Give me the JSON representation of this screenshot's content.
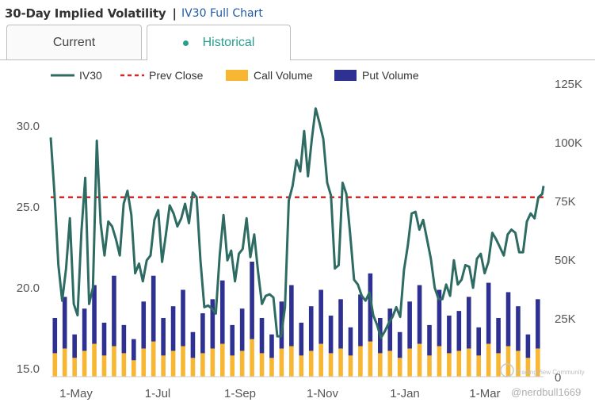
{
  "header": {
    "title": "30-Day Implied Volatility",
    "separator": "|",
    "link": "IV30 Full Chart"
  },
  "tabs": [
    {
      "label": "Current"
    },
    {
      "label": "Historical"
    }
  ],
  "colors": {
    "iv30": "#2e6b62",
    "prev_close": "#d62728",
    "call": "#f7b733",
    "put": "#2e3192",
    "active_tab": "#2a9d8f"
  },
  "chart_data": {
    "type": "bar+line",
    "title": "30-Day Implied Volatility",
    "legend": [
      "IV30",
      "Prev Close",
      "Call Volume",
      "Put Volume"
    ],
    "x_tick_labels": [
      "1-May",
      "1-Jul",
      "1-Sep",
      "1-Nov",
      "1-Jan",
      "1-Mar"
    ],
    "y_left": {
      "ticks": [
        "15.0",
        "20.0",
        "25.0",
        "30.0"
      ],
      "values": [
        15,
        20,
        25,
        30
      ],
      "range": [
        14.5,
        33
      ]
    },
    "y_right": {
      "ticks": [
        "0",
        "25K",
        "50K",
        "75K",
        "100K",
        "125K"
      ],
      "values": [
        0,
        25000,
        50000,
        75000,
        100000,
        125000
      ],
      "range": [
        0,
        125000
      ]
    },
    "prev_close": 25.6,
    "iv30": [
      [
        0,
        29.3
      ],
      [
        3,
        25.8
      ],
      [
        6,
        21.4
      ],
      [
        9,
        19.2
      ],
      [
        12,
        21.2
      ],
      [
        15,
        24.3
      ],
      [
        18,
        19.0
      ],
      [
        21,
        18.3
      ],
      [
        24,
        23.5
      ],
      [
        27,
        26.8
      ],
      [
        30,
        19.0
      ],
      [
        33,
        20.0
      ],
      [
        36,
        29.1
      ],
      [
        39,
        24.0
      ],
      [
        42,
        22.0
      ],
      [
        45,
        24.1
      ],
      [
        48,
        23.8
      ],
      [
        51,
        23.0
      ],
      [
        54,
        22.0
      ],
      [
        57,
        25.2
      ],
      [
        60,
        26.0
      ],
      [
        63,
        24.5
      ],
      [
        66,
        20.9
      ],
      [
        69,
        21.5
      ],
      [
        72,
        20.4
      ],
      [
        75,
        21.7
      ],
      [
        78,
        22.0
      ],
      [
        81,
        24.2
      ],
      [
        84,
        24.8
      ],
      [
        87,
        21.6
      ],
      [
        90,
        23.3
      ],
      [
        93,
        25.1
      ],
      [
        96,
        24.6
      ],
      [
        99,
        23.8
      ],
      [
        102,
        24.3
      ],
      [
        105,
        25.2
      ],
      [
        108,
        24.0
      ],
      [
        111,
        25.9
      ],
      [
        114,
        25.6
      ],
      [
        117,
        21.7
      ],
      [
        120,
        18.8
      ],
      [
        123,
        18.9
      ],
      [
        126,
        18.7
      ],
      [
        129,
        18.4
      ],
      [
        132,
        22.0
      ],
      [
        135,
        24.5
      ],
      [
        138,
        21.7
      ],
      [
        141,
        22.3
      ],
      [
        144,
        20.4
      ],
      [
        147,
        22.1
      ],
      [
        150,
        22.4
      ],
      [
        153,
        24.3
      ],
      [
        156,
        21.9
      ],
      [
        159,
        23.3
      ],
      [
        162,
        21.0
      ],
      [
        165,
        19.0
      ],
      [
        168,
        19.5
      ],
      [
        171,
        19.6
      ],
      [
        174,
        19.4
      ],
      [
        177,
        17.0
      ],
      [
        180,
        17.0
      ],
      [
        183,
        18.8
      ],
      [
        186,
        25.4
      ],
      [
        189,
        26.3
      ],
      [
        192,
        27.9
      ],
      [
        195,
        27.2
      ],
      [
        198,
        29.7
      ],
      [
        201,
        26.9
      ],
      [
        204,
        29.2
      ],
      [
        207,
        31.1
      ],
      [
        210,
        30.2
      ],
      [
        213,
        29.2
      ],
      [
        216,
        26.5
      ],
      [
        219,
        25.7
      ],
      [
        222,
        21.2
      ],
      [
        225,
        21.4
      ],
      [
        228,
        26.5
      ],
      [
        231,
        25.8
      ],
      [
        234,
        23.3
      ],
      [
        237,
        20.5
      ],
      [
        240,
        20.2
      ],
      [
        243,
        19.5
      ],
      [
        246,
        19.2
      ],
      [
        249,
        19.7
      ],
      [
        252,
        18.3
      ],
      [
        255,
        17.7
      ],
      [
        258,
        16.9
      ],
      [
        261,
        17.3
      ],
      [
        264,
        17.8
      ],
      [
        267,
        18.2
      ],
      [
        270,
        18.8
      ],
      [
        273,
        18.2
      ],
      [
        276,
        21.1
      ],
      [
        279,
        22.6
      ],
      [
        282,
        24.6
      ],
      [
        285,
        24.7
      ],
      [
        288,
        23.6
      ],
      [
        291,
        24.2
      ],
      [
        294,
        23.0
      ],
      [
        297,
        21.8
      ],
      [
        300,
        20.0
      ],
      [
        303,
        19.3
      ],
      [
        306,
        19.3
      ],
      [
        309,
        20.2
      ],
      [
        312,
        19.5
      ],
      [
        315,
        21.7
      ],
      [
        318,
        20.2
      ],
      [
        321,
        20.5
      ],
      [
        324,
        21.4
      ],
      [
        327,
        21.3
      ],
      [
        330,
        20.0
      ],
      [
        333,
        21.8
      ],
      [
        336,
        22.1
      ],
      [
        339,
        20.9
      ],
      [
        342,
        21.6
      ],
      [
        345,
        23.4
      ],
      [
        348,
        23.0
      ],
      [
        351,
        22.5
      ],
      [
        354,
        22.0
      ],
      [
        357,
        23.3
      ],
      [
        360,
        23.6
      ],
      [
        363,
        23.4
      ],
      [
        366,
        22.2
      ],
      [
        369,
        22.2
      ],
      [
        372,
        24.1
      ],
      [
        375,
        24.6
      ],
      [
        378,
        24.3
      ],
      [
        381,
        25.6
      ],
      [
        384,
        25.8
      ],
      [
        385,
        26.3
      ]
    ],
    "call_volume": [
      10,
      12,
      8,
      11,
      14,
      9,
      13,
      10,
      7,
      12,
      15,
      9,
      11,
      13,
      8,
      10,
      12,
      14,
      9,
      11,
      16,
      10,
      8,
      12,
      13,
      9,
      11,
      14,
      10,
      12,
      9,
      13,
      15,
      10,
      11,
      8,
      12,
      14,
      9,
      13,
      10,
      11,
      12,
      9,
      14,
      10,
      13,
      11,
      8,
      12
    ],
    "put_volume": [
      15,
      22,
      10,
      18,
      25,
      14,
      30,
      12,
      9,
      20,
      28,
      16,
      19,
      24,
      11,
      17,
      21,
      27,
      13,
      18,
      33,
      15,
      10,
      20,
      26,
      14,
      19,
      23,
      16,
      21,
      12,
      22,
      29,
      15,
      18,
      11,
      20,
      25,
      13,
      24,
      16,
      17,
      22,
      12,
      26,
      15,
      23,
      19,
      10,
      21
    ],
    "watermark": "@nerdbull1669",
    "community_badge": "TradingView Community"
  }
}
